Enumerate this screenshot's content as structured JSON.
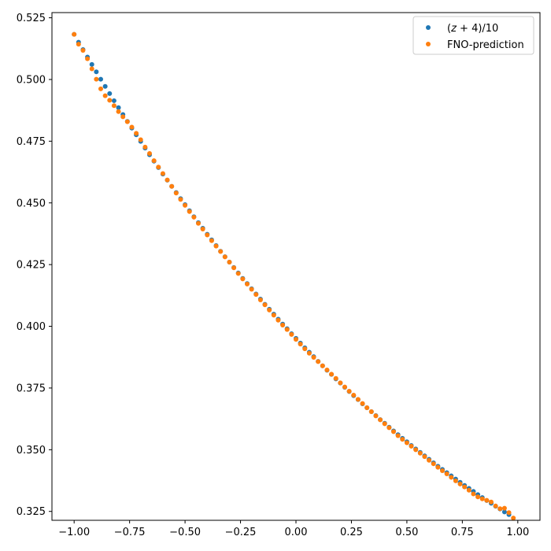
{
  "chart_data": {
    "type": "scatter",
    "title": "",
    "xlabel": "",
    "ylabel": "",
    "xlim": [
      -1.1,
      1.1
    ],
    "ylim": [
      0.3214,
      0.5271
    ],
    "xticks": [
      -1.0,
      -0.75,
      -0.5,
      -0.25,
      0.0,
      0.25,
      0.5,
      0.75,
      1.0
    ],
    "xtick_labels": [
      "−1.00",
      "−0.75",
      "−0.50",
      "−0.25",
      "0.00",
      "0.25",
      "0.50",
      "0.75",
      "1.00"
    ],
    "yticks": [
      0.325,
      0.35,
      0.375,
      0.4,
      0.425,
      0.45,
      0.475,
      0.5,
      0.525
    ],
    "ytick_labels": [
      "0.325",
      "0.350",
      "0.375",
      "0.400",
      "0.425",
      "0.450",
      "0.475",
      "0.500",
      "0.525"
    ],
    "grid": false,
    "legend_position": "top-right",
    "series": [
      {
        "name": "(z + 4)/10",
        "name_parts": {
          "open": "(",
          "var": "z",
          "rest": " + 4)/10"
        },
        "color": "#1f77b4",
        "x": [
          -1.0,
          -0.98,
          -0.96,
          -0.94,
          -0.92,
          -0.9,
          -0.88,
          -0.86,
          -0.84,
          -0.82,
          -0.8,
          -0.78,
          -0.76,
          -0.74,
          -0.72,
          -0.7,
          -0.68,
          -0.66,
          -0.64,
          -0.62,
          -0.6,
          -0.58,
          -0.56,
          -0.54,
          -0.52,
          -0.5,
          -0.48,
          -0.46,
          -0.44,
          -0.42,
          -0.4,
          -0.38,
          -0.36,
          -0.34,
          -0.32,
          -0.3,
          -0.28,
          -0.26,
          -0.24,
          -0.22,
          -0.2,
          -0.18,
          -0.16,
          -0.14,
          -0.12,
          -0.1,
          -0.08,
          -0.06,
          -0.04,
          -0.02,
          0.0,
          0.02,
          0.04,
          0.06,
          0.08,
          0.1,
          0.12,
          0.14,
          0.16,
          0.18,
          0.2,
          0.22,
          0.24,
          0.26,
          0.28,
          0.3,
          0.32,
          0.34,
          0.36,
          0.38,
          0.4,
          0.42,
          0.44,
          0.46,
          0.48,
          0.5,
          0.52,
          0.54,
          0.56,
          0.58,
          0.6,
          0.62,
          0.64,
          0.66,
          0.68,
          0.7,
          0.72,
          0.74,
          0.76,
          0.78,
          0.8,
          0.82,
          0.84,
          0.86,
          0.88,
          0.9,
          0.92,
          0.94,
          0.96
        ],
        "y": [
          0.5183,
          0.5151,
          0.5121,
          0.5091,
          0.5061,
          0.5031,
          0.5001,
          0.4972,
          0.4943,
          0.4914,
          0.4886,
          0.4858,
          0.483,
          0.4803,
          0.4776,
          0.4749,
          0.4722,
          0.4695,
          0.4669,
          0.4643,
          0.4617,
          0.4592,
          0.4567,
          0.4542,
          0.4517,
          0.4493,
          0.4468,
          0.4444,
          0.442,
          0.4397,
          0.4373,
          0.435,
          0.4327,
          0.4304,
          0.4282,
          0.426,
          0.4238,
          0.4216,
          0.4194,
          0.4173,
          0.4152,
          0.4131,
          0.411,
          0.4089,
          0.4069,
          0.4049,
          0.4029,
          0.4009,
          0.399,
          0.397,
          0.3951,
          0.3932,
          0.3913,
          0.3895,
          0.3877,
          0.3858,
          0.384,
          0.3822,
          0.3805,
          0.3787,
          0.377,
          0.3753,
          0.3736,
          0.3719,
          0.3703,
          0.3686,
          0.367,
          0.3654,
          0.3638,
          0.3622,
          0.3607,
          0.3591,
          0.3576,
          0.3561,
          0.3546,
          0.3532,
          0.3517,
          0.3503,
          0.3489,
          0.3475,
          0.3461,
          0.3447,
          0.3433,
          0.342,
          0.3407,
          0.3394,
          0.3381,
          0.3368,
          0.3355,
          0.3343,
          0.3331,
          0.3318,
          0.3306,
          0.3294,
          0.3283,
          0.3271,
          0.326,
          0.3248,
          0.3237
        ]
      },
      {
        "name": "FNO-prediction",
        "color": "#ff7f0e",
        "x": [
          -1.0,
          -0.98,
          -0.96,
          -0.94,
          -0.92,
          -0.9,
          -0.88,
          -0.86,
          -0.84,
          -0.82,
          -0.8,
          -0.78,
          -0.76,
          -0.74,
          -0.72,
          -0.7,
          -0.68,
          -0.66,
          -0.64,
          -0.62,
          -0.6,
          -0.58,
          -0.56,
          -0.54,
          -0.52,
          -0.5,
          -0.48,
          -0.46,
          -0.44,
          -0.42,
          -0.4,
          -0.38,
          -0.36,
          -0.34,
          -0.32,
          -0.3,
          -0.28,
          -0.26,
          -0.24,
          -0.22,
          -0.2,
          -0.18,
          -0.16,
          -0.14,
          -0.12,
          -0.1,
          -0.08,
          -0.06,
          -0.04,
          -0.02,
          0.0,
          0.02,
          0.04,
          0.06,
          0.08,
          0.1,
          0.12,
          0.14,
          0.16,
          0.18,
          0.2,
          0.22,
          0.24,
          0.26,
          0.28,
          0.3,
          0.32,
          0.34,
          0.36,
          0.38,
          0.4,
          0.42,
          0.44,
          0.46,
          0.48,
          0.5,
          0.52,
          0.54,
          0.56,
          0.58,
          0.6,
          0.62,
          0.64,
          0.66,
          0.68,
          0.7,
          0.72,
          0.74,
          0.76,
          0.78,
          0.8,
          0.82,
          0.84,
          0.86,
          0.88,
          0.9,
          0.92,
          0.94,
          0.96,
          0.98
        ],
        "y": [
          0.5183,
          0.5143,
          0.5118,
          0.5084,
          0.5043,
          0.5001,
          0.4962,
          0.4934,
          0.4916,
          0.4894,
          0.487,
          0.4849,
          0.4829,
          0.4807,
          0.4782,
          0.4756,
          0.4726,
          0.47,
          0.4671,
          0.4645,
          0.4619,
          0.4593,
          0.4567,
          0.454,
          0.4514,
          0.449,
          0.4465,
          0.4442,
          0.4417,
          0.4394,
          0.437,
          0.4347,
          0.4325,
          0.4303,
          0.4281,
          0.426,
          0.4237,
          0.4214,
          0.4192,
          0.4171,
          0.415,
          0.4129,
          0.4107,
          0.4087,
          0.4066,
          0.4045,
          0.4025,
          0.4005,
          0.3987,
          0.3967,
          0.3947,
          0.3928,
          0.3909,
          0.3891,
          0.3874,
          0.3857,
          0.384,
          0.3823,
          0.3806,
          0.3789,
          0.3771,
          0.3754,
          0.3737,
          0.3721,
          0.3704,
          0.3687,
          0.367,
          0.3654,
          0.3637,
          0.3621,
          0.3605,
          0.3589,
          0.3573,
          0.3557,
          0.3542,
          0.3528,
          0.3514,
          0.35,
          0.3486,
          0.3472,
          0.3457,
          0.3443,
          0.3429,
          0.3415,
          0.3402,
          0.3388,
          0.3374,
          0.3361,
          0.3349,
          0.3336,
          0.3321,
          0.3309,
          0.3301,
          0.3295,
          0.3288,
          0.3272,
          0.3261,
          0.3263,
          0.3245,
          0.3223
        ]
      }
    ]
  }
}
